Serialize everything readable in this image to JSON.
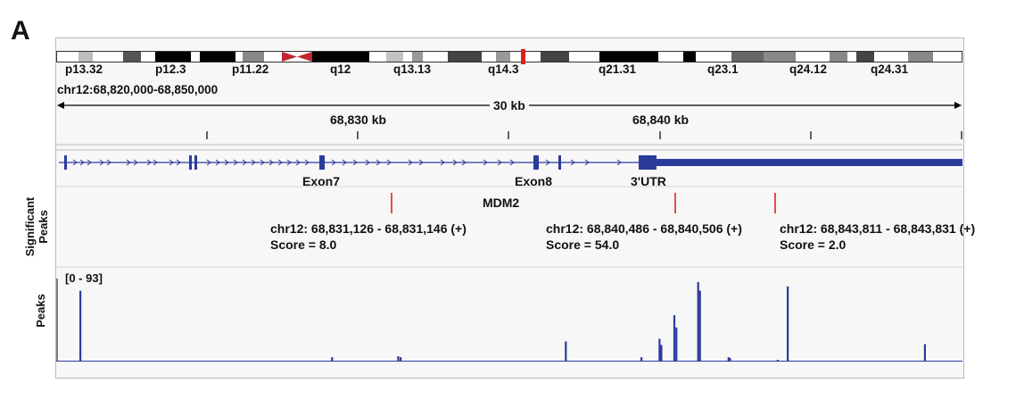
{
  "panel_label": "A",
  "ideogram": {
    "bands": [
      "p13.32",
      "p12.3",
      "p11.22",
      "q12",
      "q13.13",
      "q14.3",
      "q21.31",
      "q23.1",
      "q24.12",
      "q24.31"
    ]
  },
  "locus": "chr12:68,820,000-68,850,000",
  "ruler": {
    "span_label": "30 kb",
    "tick_labels": [
      "68,830 kb",
      "68,840 kb"
    ]
  },
  "gene_track": {
    "gene_name": "MDM2",
    "features": [
      "Exon7",
      "Exon8",
      "3'UTR"
    ]
  },
  "significant_peaks_track": {
    "label_line1": "Significant",
    "label_line2": "Peaks",
    "peaks": [
      {
        "coords": "chr12: 68,831,126 - 68,831,146 (+)",
        "score": "Score = 8.0"
      },
      {
        "coords": "chr12: 68,840,486 - 68,840,506 (+)",
        "score": "Score = 54.0"
      },
      {
        "coords": "chr12: 68,843,811 - 68,843,831 (+)",
        "score": "Score = 2.0"
      }
    ]
  },
  "peaks_track": {
    "label": "Peaks",
    "range_label": "[0 - 93]",
    "max": 93,
    "bars": [
      {
        "pos": 68820740,
        "value": 80
      },
      {
        "pos": 68829090,
        "value": 4
      },
      {
        "pos": 68831280,
        "value": 5
      },
      {
        "pos": 68831360,
        "value": 4
      },
      {
        "pos": 68836840,
        "value": 22
      },
      {
        "pos": 68839350,
        "value": 4
      },
      {
        "pos": 68839950,
        "value": 25
      },
      {
        "pos": 68840010,
        "value": 18
      },
      {
        "pos": 68840440,
        "value": 52
      },
      {
        "pos": 68840510,
        "value": 38
      },
      {
        "pos": 68841230,
        "value": 90
      },
      {
        "pos": 68841290,
        "value": 80
      },
      {
        "pos": 68842240,
        "value": 4
      },
      {
        "pos": 68842290,
        "value": 3
      },
      {
        "pos": 68843870,
        "value": 1
      },
      {
        "pos": 68844200,
        "value": 85
      },
      {
        "pos": 68848750,
        "value": 19
      }
    ]
  },
  "colors": {
    "gene": "#2b3b9c",
    "peak_marker": "#e0201d",
    "coverage": "#2b3b9c",
    "centromere": "#c0272d",
    "frame": "#b9b9b9"
  }
}
